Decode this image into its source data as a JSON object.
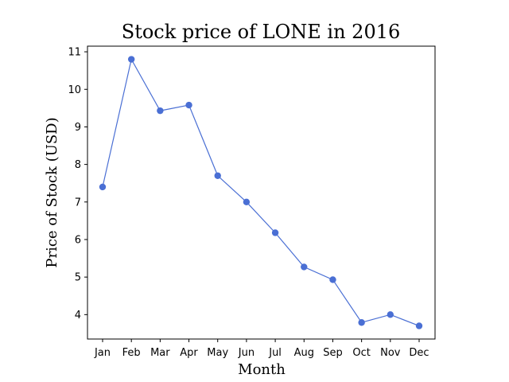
{
  "chart_data": {
    "type": "line",
    "title": "Stock price of LONE in 2016",
    "xlabel": "Month",
    "ylabel": "Price of Stock (USD)",
    "categories": [
      "Jan",
      "Feb",
      "Mar",
      "Apr",
      "May",
      "Jun",
      "Jul",
      "Aug",
      "Sep",
      "Oct",
      "Nov",
      "Dec"
    ],
    "series": [
      {
        "values": [
          7.4,
          10.8,
          9.43,
          9.58,
          7.7,
          7.0,
          6.18,
          5.27,
          4.93,
          3.79,
          4.0,
          3.7
        ],
        "color": "#4a6fd4",
        "marker": "circle"
      }
    ],
    "ylim": [
      3.35,
      11.15
    ],
    "yticks": [
      4,
      5,
      6,
      7,
      8,
      9,
      10,
      11
    ],
    "grid": false,
    "legend": "none"
  }
}
